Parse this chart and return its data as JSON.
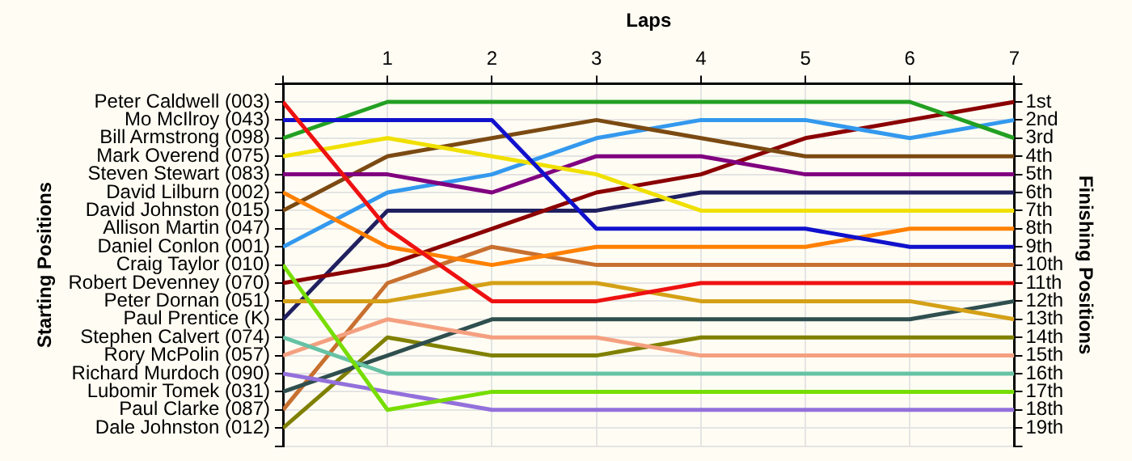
{
  "chart_data": {
    "type": "line",
    "xlabel": "Laps",
    "ylabel": "Finishing Positions",
    "x": [
      0,
      1,
      2,
      3,
      4,
      5,
      6,
      7
    ],
    "xlim": [
      0,
      7
    ],
    "xticks": [
      {
        "value": 0,
        "label": null
      },
      1,
      2,
      3,
      4,
      5,
      6,
      7
    ],
    "ylim": [
      20,
      0
    ],
    "yticks": [
      {
        "value": 0,
        "label": null
      },
      {
        "value": 1,
        "label": "1st"
      },
      {
        "value": 2,
        "label": "2nd"
      },
      {
        "value": 3,
        "label": "3rd"
      },
      {
        "value": 4,
        "label": "4th"
      },
      {
        "value": 5,
        "label": "5th"
      },
      {
        "value": 6,
        "label": "6th"
      },
      {
        "value": 7,
        "label": "7th"
      },
      {
        "value": 8,
        "label": "8th"
      },
      {
        "value": 9,
        "label": "9th"
      },
      {
        "value": 10,
        "label": "10th"
      },
      {
        "value": 11,
        "label": "11th"
      },
      {
        "value": 12,
        "label": "12th"
      },
      {
        "value": 13,
        "label": "13th"
      },
      {
        "value": 14,
        "label": "14th"
      },
      {
        "value": 15,
        "label": "15th"
      },
      {
        "value": 16,
        "label": "16th"
      },
      {
        "value": 17,
        "label": "17th"
      },
      {
        "value": 18,
        "label": "18th"
      },
      {
        "value": 19,
        "label": "19th"
      },
      {
        "value": 20,
        "label": null
      }
    ],
    "grid": true,
    "marker": "none",
    "line_style": "solid",
    "annotations": [
      "Starting Positions",
      "Allison Martin (047)"
    ],
    "series": [
      {
        "name": "Peter Caldwell (003)",
        "color": "#ee1111",
        "values": [
          1,
          8,
          12,
          12,
          11,
          11,
          11,
          11
        ]
      },
      {
        "name": "Mo McIlroy (043)",
        "color": "#1111cc",
        "values": [
          2,
          2,
          2,
          8,
          8,
          8,
          9,
          9
        ]
      },
      {
        "name": "Bill Armstrong (098)",
        "color": "#22a022",
        "values": [
          3,
          1,
          1,
          1,
          1,
          1,
          1,
          3
        ]
      },
      {
        "name": "Mark Overend (075)",
        "color": "#f0e000",
        "values": [
          4,
          3,
          4,
          5,
          7,
          7,
          7,
          7
        ]
      },
      {
        "name": "Steven Stewart (083)",
        "color": "#800080",
        "values": [
          5,
          5,
          6,
          4,
          4,
          5,
          5,
          5
        ]
      },
      {
        "name": "David Lilburn (002)",
        "color": "#ff8000",
        "values": [
          6,
          9,
          10,
          9,
          9,
          9,
          8,
          8
        ]
      },
      {
        "name": "David Johnston (015)",
        "color": "#7b4a12",
        "values": [
          7,
          4,
          3,
          2,
          3,
          4,
          4,
          4
        ]
      },
      {
        "name": "Daniel Conlon (001)",
        "color": "#3399ee",
        "values": [
          9,
          6,
          5,
          3,
          2,
          2,
          3,
          2
        ]
      },
      {
        "name": "Craig Taylor (010)",
        "color": "#77dd00",
        "values": [
          10,
          18,
          17,
          17,
          17,
          17,
          17,
          17
        ]
      },
      {
        "name": "Robert Devenney (070)",
        "color": "#8b0000",
        "values": [
          11,
          10,
          8,
          6,
          5,
          3,
          2,
          1
        ]
      },
      {
        "name": "Peter Dornan (051)",
        "color": "#d4a017",
        "values": [
          12,
          12,
          11,
          11,
          12,
          12,
          12,
          13
        ]
      },
      {
        "name": "Paul Prentice (K)",
        "color": "#202060",
        "values": [
          13,
          7,
          7,
          7,
          6,
          6,
          6,
          6
        ]
      },
      {
        "name": "Stephen Calvert (074)",
        "color": "#66c2a5",
        "values": [
          14,
          16,
          16,
          16,
          16,
          16,
          16,
          16
        ]
      },
      {
        "name": "Rory McPolin (057)",
        "color": "#f4a080",
        "values": [
          15,
          13,
          14,
          14,
          15,
          15,
          15,
          15
        ]
      },
      {
        "name": "Richard Murdoch (090)",
        "color": "#9370db",
        "values": [
          16,
          17,
          18,
          18,
          18,
          18,
          18,
          18
        ]
      },
      {
        "name": "Lubomir Tomek (031)",
        "color": "#2f4f4f",
        "values": [
          17,
          15,
          13,
          13,
          13,
          13,
          13,
          12
        ]
      },
      {
        "name": "Paul Clarke (087)",
        "color": "#c87030",
        "values": [
          18,
          11,
          9,
          10,
          10,
          10,
          10,
          10
        ]
      },
      {
        "name": "Dale Johnston (012)",
        "color": "#808000",
        "values": [
          19,
          14,
          15,
          15,
          14,
          14,
          14,
          14
        ]
      }
    ]
  }
}
